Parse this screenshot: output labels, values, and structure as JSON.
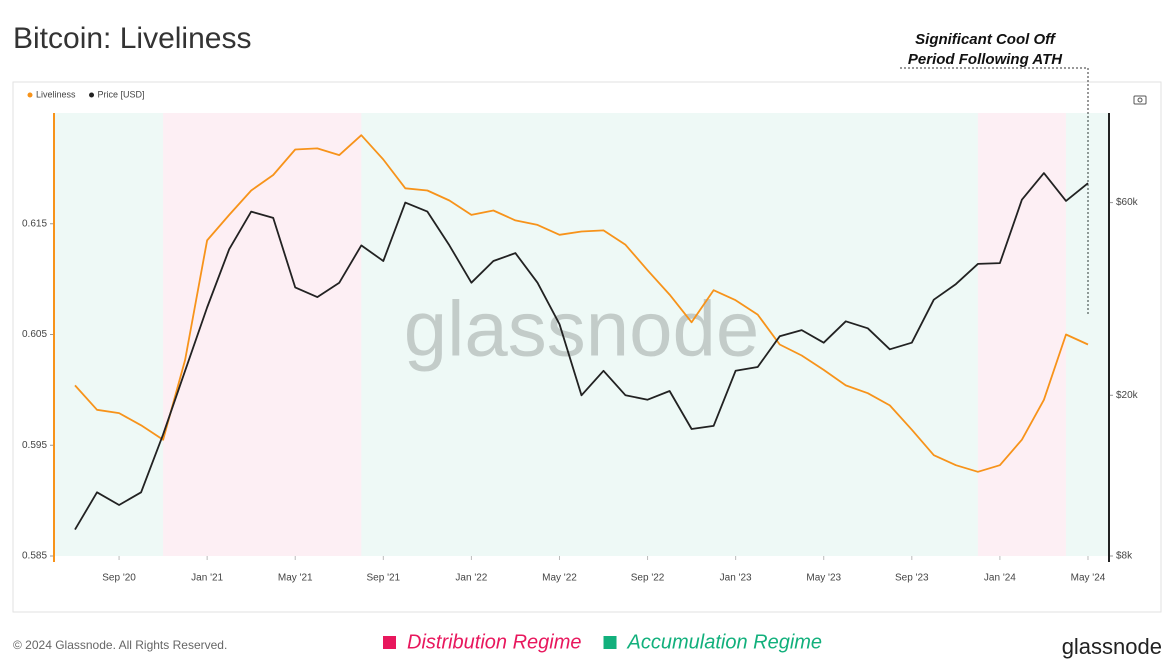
{
  "chart_data": {
    "type": "line",
    "title": "Bitcoin: Liveliness",
    "annotation": [
      "Significant Cool Off",
      "Period Following ATH"
    ],
    "watermark": "glassnode",
    "logo": "glassnode",
    "copyright": "© 2024 Glassnode. All Rights Reserved.",
    "x": [
      "2020-07",
      "2020-08",
      "2020-09",
      "2020-10",
      "2020-11",
      "2020-12",
      "2021-01",
      "2021-02",
      "2021-03",
      "2021-04",
      "2021-05",
      "2021-06",
      "2021-07",
      "2021-08",
      "2021-09",
      "2021-10",
      "2021-11",
      "2021-12",
      "2022-01",
      "2022-02",
      "2022-03",
      "2022-04",
      "2022-05",
      "2022-06",
      "2022-07",
      "2022-08",
      "2022-09",
      "2022-10",
      "2022-11",
      "2022-12",
      "2023-01",
      "2023-02",
      "2023-03",
      "2023-04",
      "2023-05",
      "2023-06",
      "2023-07",
      "2023-08",
      "2023-09",
      "2023-10",
      "2023-11",
      "2023-12",
      "2024-01",
      "2024-02",
      "2024-03",
      "2024-04",
      "2024-05"
    ],
    "xlim": [
      "2020-06",
      "2024-06"
    ],
    "xticks": [
      {
        "value": "2020-09",
        "label": "Sep '20"
      },
      {
        "value": "2021-01",
        "label": "Jan '21"
      },
      {
        "value": "2021-05",
        "label": "May '21"
      },
      {
        "value": "2021-09",
        "label": "Sep '21"
      },
      {
        "value": "2022-01",
        "label": "Jan '22"
      },
      {
        "value": "2022-05",
        "label": "May '22"
      },
      {
        "value": "2022-09",
        "label": "Sep '22"
      },
      {
        "value": "2023-01",
        "label": "Jan '23"
      },
      {
        "value": "2023-05",
        "label": "May '23"
      },
      {
        "value": "2023-09",
        "label": "Sep '23"
      },
      {
        "value": "2024-01",
        "label": "Jan '24"
      },
      {
        "value": "2024-05",
        "label": "May '24"
      }
    ],
    "ylim": [
      0.585,
      0.625
    ],
    "yticks": [
      0.585,
      0.595,
      0.605,
      0.615
    ],
    "y2lim": [
      8000,
      100000
    ],
    "y2log": true,
    "y2ticks": [
      {
        "value": 8000,
        "label": "$8k"
      },
      {
        "value": 20000,
        "label": "$20k"
      },
      {
        "value": 60000,
        "label": "$60k"
      }
    ],
    "series": [
      {
        "name": "Liveliness",
        "color": "#f7931a",
        "values": [
          0.6004,
          0.5982,
          0.5979,
          0.5968,
          0.5955,
          0.6027,
          0.6135,
          0.6158,
          0.618,
          0.6194,
          0.6217,
          0.6218,
          0.6212,
          0.623,
          0.6208,
          0.6182,
          0.618,
          0.6171,
          0.6158,
          0.6162,
          0.6153,
          0.6149,
          0.614,
          0.6143,
          0.6144,
          0.6131,
          0.6108,
          0.6086,
          0.6061,
          0.609,
          0.6081,
          0.6068,
          0.6041,
          0.6031,
          0.6018,
          0.6004,
          0.5997,
          0.5986,
          0.5964,
          0.5941,
          0.5932,
          0.5926,
          0.5932,
          0.5955,
          0.5991,
          0.605,
          0.6041
        ]
      },
      {
        "name": "Price [USD]",
        "color": "#222222",
        "axis": "y2",
        "values": [
          9300,
          11500,
          10700,
          11500,
          16000,
          23000,
          33000,
          46000,
          57000,
          55000,
          37000,
          35000,
          38000,
          47000,
          43000,
          60000,
          57000,
          47000,
          38000,
          43000,
          45000,
          38000,
          30000,
          20000,
          23000,
          20000,
          19500,
          20500,
          16500,
          16800,
          23000,
          23500,
          28000,
          29000,
          27000,
          30500,
          29300,
          26000,
          27000,
          34500,
          37700,
          42300,
          42500,
          61000,
          71000,
          60600,
          67000
        ]
      }
    ],
    "regimes": [
      {
        "name": "Distribution Regime",
        "color": "#e8175d",
        "spans": [
          [
            "2020-11",
            "2021-08"
          ],
          [
            "2023-12",
            "2024-04"
          ]
        ]
      },
      {
        "name": "Accumulation Regime",
        "color": "#12b07c",
        "spans": [
          [
            "2020-06",
            "2020-11"
          ],
          [
            "2021-08",
            "2023-12"
          ],
          [
            "2024-04",
            "2024-06"
          ]
        ]
      }
    ]
  }
}
